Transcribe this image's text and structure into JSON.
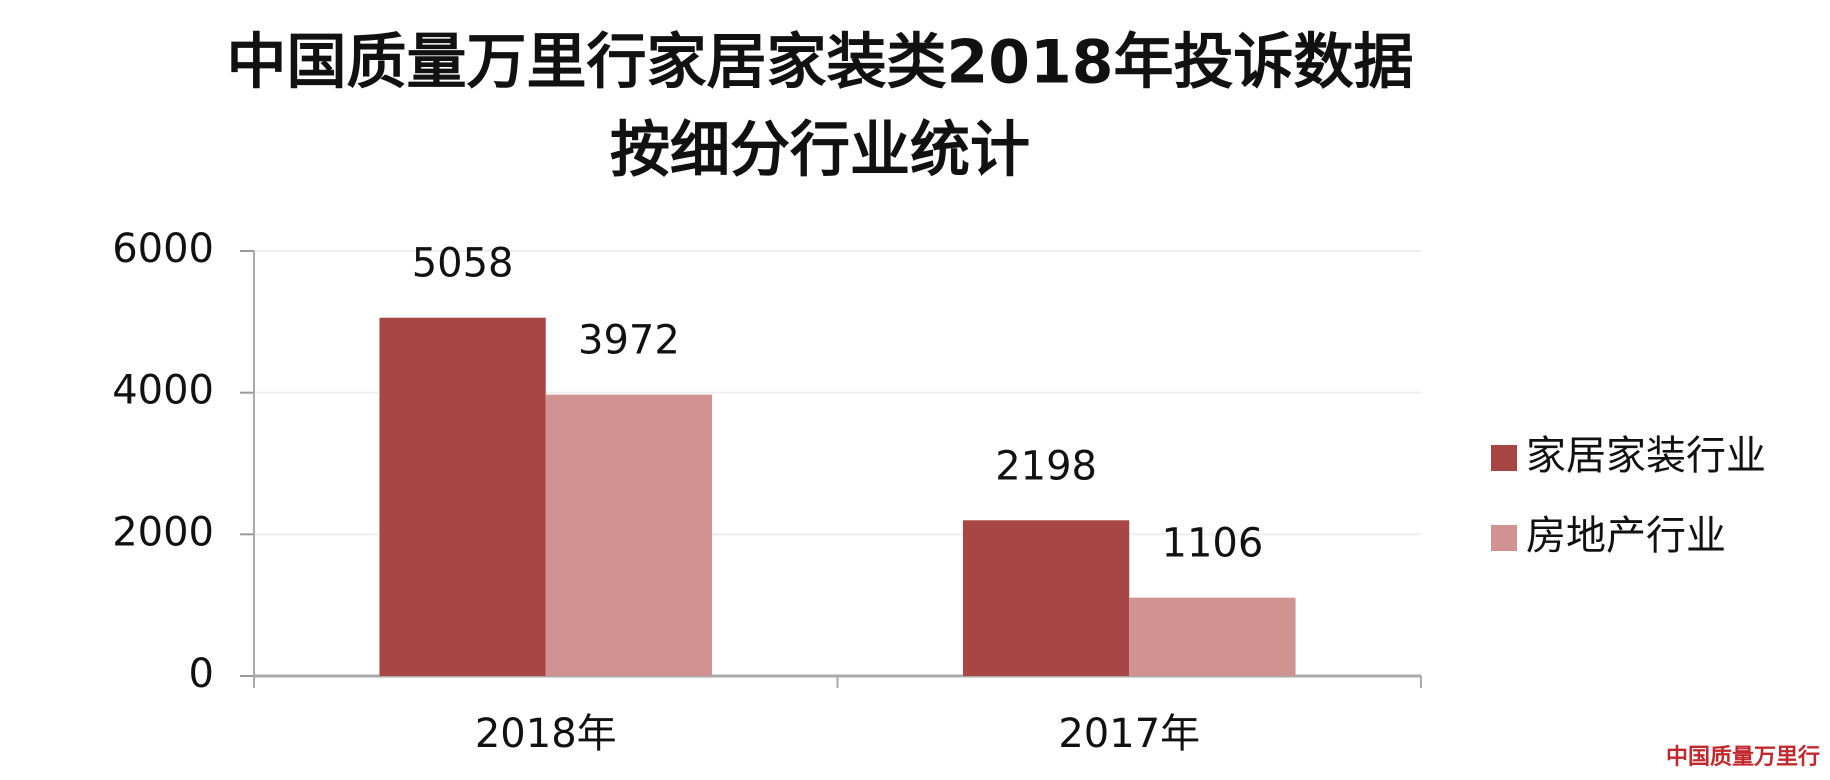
{
  "chart_data": {
    "type": "bar",
    "title": [
      "中国质量万里行家居家装类2018年投诉数据",
      "按细分行业统计"
    ],
    "categories": [
      "2018年",
      "2017年"
    ],
    "series": [
      {
        "name": "家居家装行业",
        "color": "#a84646",
        "values": [
          5058,
          2198
        ]
      },
      {
        "name": "房地产行业",
        "color": "#d19292",
        "values": [
          3972,
          1106
        ]
      }
    ],
    "ylim": [
      0,
      6000
    ],
    "yticks": [
      0,
      2000,
      4000,
      6000
    ],
    "grid": true,
    "legend": "right",
    "watermark": "中国质量万里行"
  }
}
